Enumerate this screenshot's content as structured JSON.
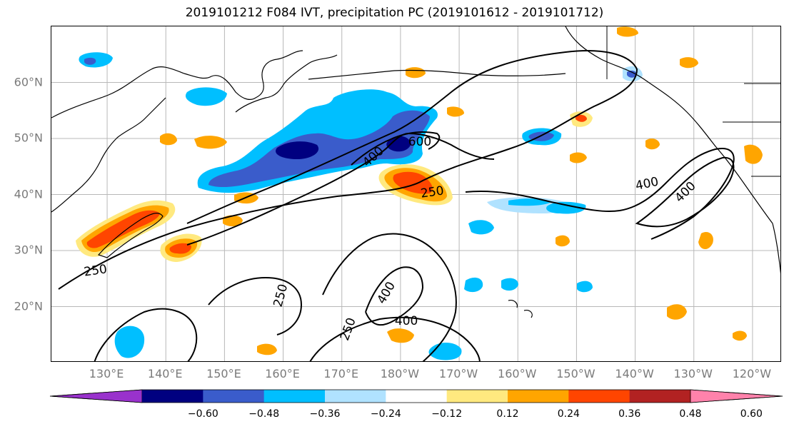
{
  "title": "2019101212 F084 IVT, precipitation PC (2019101612 - 2019101712)",
  "map": {
    "lat_labels": [
      {
        "text": "60°N",
        "lat": 60
      },
      {
        "text": "50°N",
        "lat": 50
      },
      {
        "text": "40°N",
        "lat": 40
      },
      {
        "text": "30°N",
        "lat": 30
      },
      {
        "text": "20°N",
        "lat": 20
      }
    ],
    "lon_labels": [
      {
        "text": "130°E",
        "lon": 130
      },
      {
        "text": "140°E",
        "lon": 140
      },
      {
        "text": "150°E",
        "lon": 150
      },
      {
        "text": "160°E",
        "lon": 160
      },
      {
        "text": "170°E",
        "lon": 170
      },
      {
        "text": "180°W",
        "lon": 180
      },
      {
        "text": "170°W",
        "lon": 190
      },
      {
        "text": "160°W",
        "lon": 200
      },
      {
        "text": "150°W",
        "lon": 210
      },
      {
        "text": "140°W",
        "lon": 220
      },
      {
        "text": "130°W",
        "lon": 230
      },
      {
        "text": "120°W",
        "lon": 240
      }
    ],
    "contour_labels": [
      {
        "text": "600",
        "lon": 183.3,
        "lat": 49.5,
        "angle": 0
      },
      {
        "text": "400",
        "lon": 175.3,
        "lat": 46.8,
        "angle": -42
      },
      {
        "text": "250",
        "lon": 185.4,
        "lat": 40.5,
        "angle": -8
      },
      {
        "text": "400",
        "lon": 222.0,
        "lat": 42.0,
        "angle": -12
      },
      {
        "text": "400",
        "lon": 228.5,
        "lat": 40.5,
        "angle": -45
      },
      {
        "text": "250",
        "lon": 128.0,
        "lat": 26.5,
        "angle": -8
      },
      {
        "text": "250",
        "lon": 159.5,
        "lat": 22.0,
        "angle": -75
      },
      {
        "text": "400",
        "lon": 177.5,
        "lat": 22.5,
        "angle": -60
      },
      {
        "text": "400",
        "lon": 181.0,
        "lat": 17.5,
        "angle": 0
      },
      {
        "text": "250",
        "lon": 171.0,
        "lat": 16.0,
        "angle": -70
      }
    ],
    "colors": {
      "neg_060": "#9932cc",
      "neg_048": "#000080",
      "neg_036": "#3a5ccb",
      "neg_024": "#00bfff",
      "neg_012": "#b0e2ff",
      "neutral": "#ffffff",
      "pos_012": "#ffe97f",
      "pos_024": "#ffa500",
      "pos_036": "#ff4500",
      "pos_048": "#b22222",
      "pos_060": "#ff82ab"
    }
  },
  "colorbar": {
    "colors": [
      "#9932cc",
      "#000080",
      "#3a5ccb",
      "#00bfff",
      "#b0e2ff",
      "#ffffff",
      "#ffe97f",
      "#ffa500",
      "#ff4500",
      "#b22222",
      "#ff82ab"
    ],
    "ticks": [
      "−0.60",
      "−0.48",
      "−0.36",
      "−0.24",
      "−0.12",
      "0.12",
      "0.24",
      "0.36",
      "0.48",
      "0.60"
    ]
  }
}
